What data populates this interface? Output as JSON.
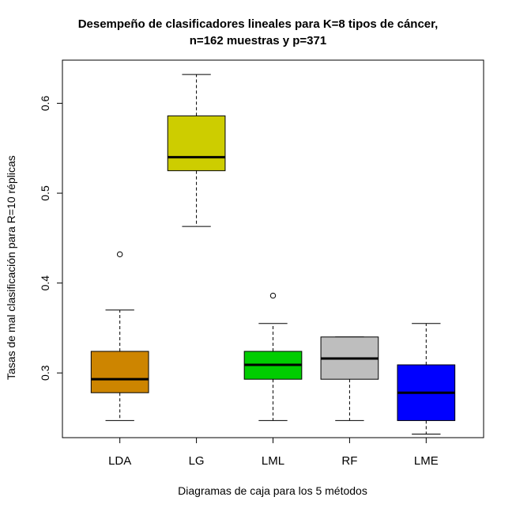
{
  "chart_data": {
    "type": "boxplot",
    "title": [
      "Desempeño de clasificadores lineales para K=8 tipos de cáncer,",
      "n=162 muestras y p=371"
    ],
    "xlabel": "Diagramas de caja para los 5 métodos",
    "ylabel": "Tasas de mal clasificación para R=10 réplicas",
    "ylim": [
      0.228,
      0.648
    ],
    "yticks": [
      0.3,
      0.4,
      0.5,
      0.6
    ],
    "ytick_labels": [
      "0.3",
      "0.4",
      "0.5",
      "0.6"
    ],
    "categories": [
      "LDA",
      "LG",
      "LML",
      "RF",
      "LME"
    ],
    "boxes": [
      {
        "name": "LDA",
        "color": "#CD8500",
        "whisker_low": 0.247,
        "q1": 0.278,
        "median": 0.293,
        "q3": 0.324,
        "whisker_high": 0.37,
        "outliers": [
          0.432
        ]
      },
      {
        "name": "LG",
        "color": "#CDCD00",
        "whisker_low": 0.463,
        "q1": 0.525,
        "median": 0.54,
        "q3": 0.586,
        "whisker_high": 0.632,
        "outliers": []
      },
      {
        "name": "LML",
        "color": "#00CD00",
        "whisker_low": 0.247,
        "q1": 0.293,
        "median": 0.309,
        "q3": 0.324,
        "whisker_high": 0.355,
        "outliers": [
          0.386
        ]
      },
      {
        "name": "RF",
        "color": "#BEBEBE",
        "whisker_low": 0.247,
        "q1": 0.293,
        "median": 0.316,
        "q3": 0.34,
        "whisker_high": 0.34,
        "outliers": []
      },
      {
        "name": "LME",
        "color": "#0000FF",
        "whisker_low": 0.232,
        "q1": 0.247,
        "median": 0.278,
        "q3": 0.309,
        "whisker_high": 0.355,
        "outliers": []
      }
    ]
  }
}
